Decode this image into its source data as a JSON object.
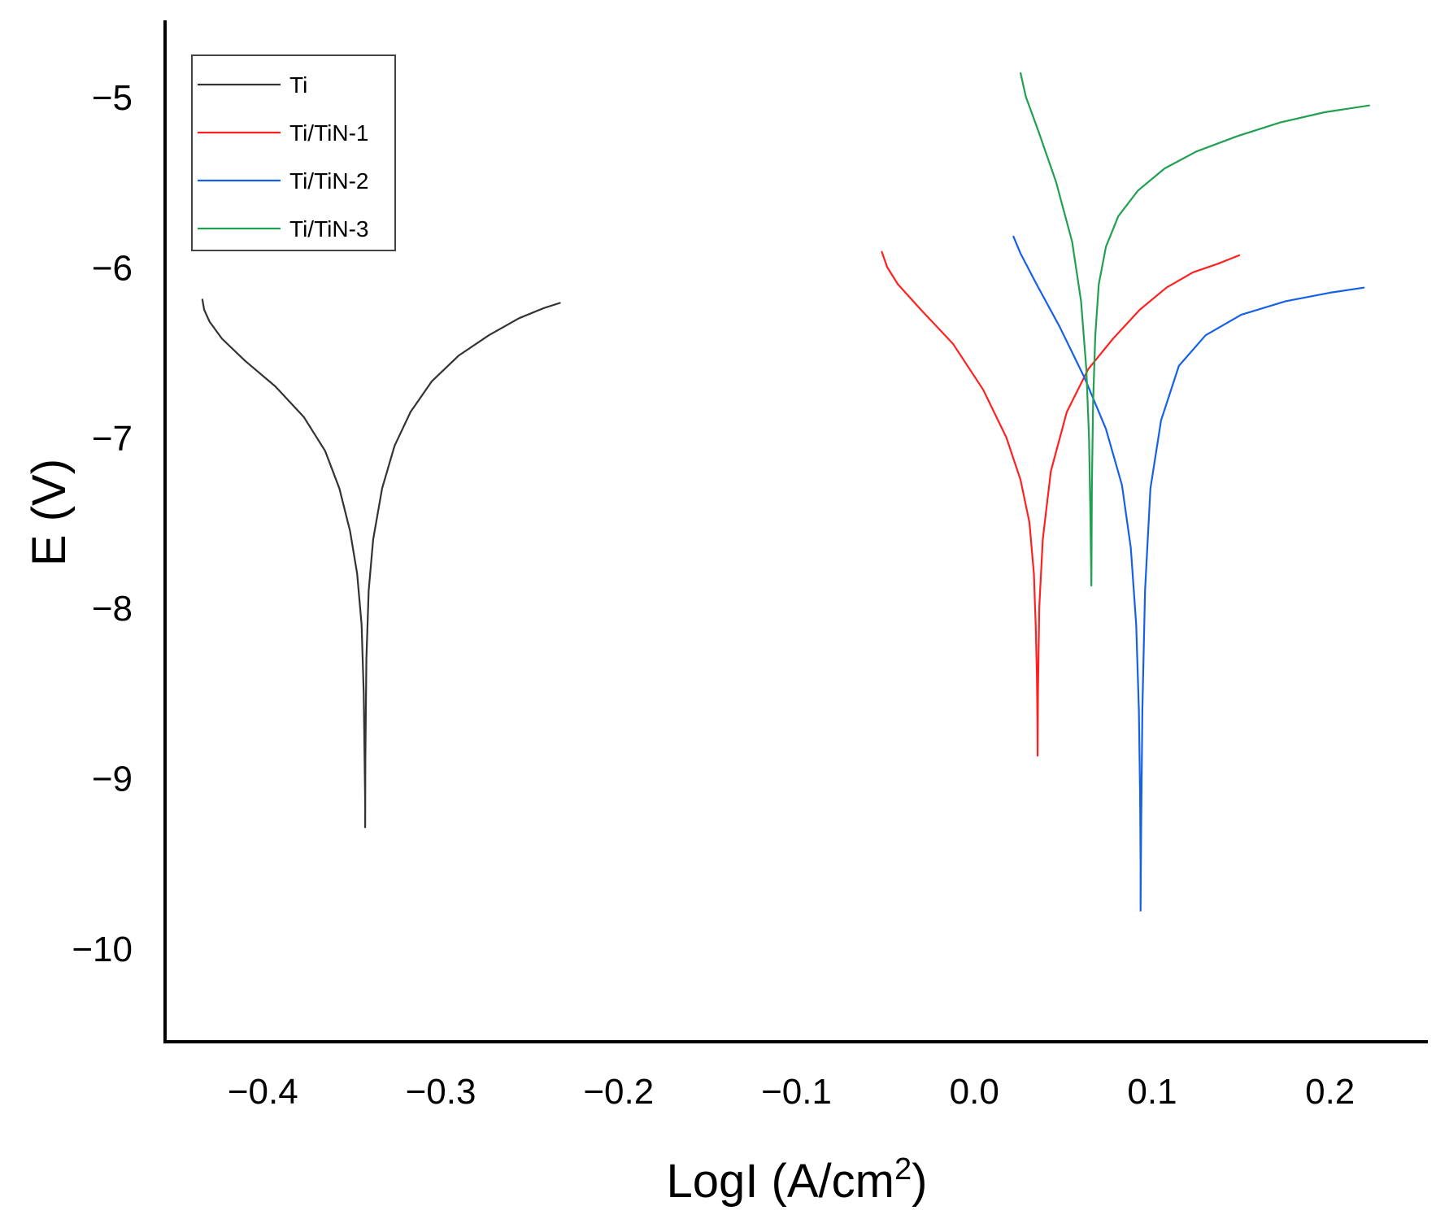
{
  "chart_data": {
    "type": "line",
    "title": "",
    "xlabel": "LogI (A/cm",
    "xlabel_sup": "2",
    "xlabel_close": ")",
    "ylabel": "E (V)",
    "xlim": [
      -0.455,
      0.255
    ],
    "ylim": [
      -10.55,
      -4.55
    ],
    "xticks": [
      -0.4,
      -0.3,
      -0.2,
      -0.1,
      0.0,
      0.1,
      0.2
    ],
    "xtick_labels": [
      "−0.4",
      "−0.3",
      "−0.2",
      "−0.1",
      "0.0",
      "0.1",
      "0.2"
    ],
    "yticks": [
      -5,
      -6,
      -7,
      -8,
      -9,
      -10
    ],
    "ytick_labels": [
      "−5",
      "−6",
      "−7",
      "−8",
      "−9",
      "−10"
    ],
    "legend_position": "top-left",
    "series": [
      {
        "name": "Ti",
        "color": "#333333",
        "x": [
          -0.434,
          -0.433,
          -0.43,
          -0.423,
          -0.41,
          -0.393,
          -0.377,
          -0.365,
          -0.357,
          -0.351,
          -0.347,
          -0.3445,
          -0.3433,
          -0.3428,
          -0.3425,
          -0.3425,
          -0.3424,
          -0.3418,
          -0.3405,
          -0.338,
          -0.333,
          -0.326,
          -0.317,
          -0.305,
          -0.29,
          -0.273,
          -0.256,
          -0.242,
          -0.233
        ],
        "y": [
          -6.19,
          -6.25,
          -6.32,
          -6.42,
          -6.55,
          -6.7,
          -6.88,
          -7.08,
          -7.3,
          -7.55,
          -7.8,
          -8.1,
          -8.5,
          -8.9,
          -9.15,
          -9.29,
          -8.9,
          -8.3,
          -7.9,
          -7.6,
          -7.3,
          -7.05,
          -6.85,
          -6.67,
          -6.52,
          -6.4,
          -6.3,
          -6.24,
          -6.21
        ]
      },
      {
        "name": "Ti/TiN-1",
        "color": "#ff2020",
        "x": [
          -0.052,
          -0.049,
          -0.043,
          -0.03,
          -0.012,
          0.005,
          0.018,
          0.026,
          0.031,
          0.0335,
          0.0345,
          0.0352,
          0.0355,
          0.0356,
          0.0358,
          0.0365,
          0.0385,
          0.043,
          0.052,
          0.064,
          0.078,
          0.093,
          0.108,
          0.123,
          0.137,
          0.149
        ],
        "y": [
          -5.91,
          -6.0,
          -6.1,
          -6.25,
          -6.45,
          -6.72,
          -7.0,
          -7.25,
          -7.5,
          -7.8,
          -8.1,
          -8.4,
          -8.7,
          -8.87,
          -8.5,
          -8.0,
          -7.6,
          -7.2,
          -6.85,
          -6.6,
          -6.42,
          -6.25,
          -6.12,
          -6.03,
          -5.98,
          -5.93
        ]
      },
      {
        "name": "Ti/TiN-2",
        "color": "#1560e8",
        "x": [
          0.022,
          0.026,
          0.035,
          0.048,
          0.062,
          0.074,
          0.083,
          0.088,
          0.091,
          0.0925,
          0.0932,
          0.0935,
          0.0935,
          0.0938,
          0.0945,
          0.096,
          0.099,
          0.105,
          0.115,
          0.13,
          0.15,
          0.175,
          0.2,
          0.219
        ],
        "y": [
          -5.82,
          -5.92,
          -6.1,
          -6.35,
          -6.65,
          -6.95,
          -7.28,
          -7.65,
          -8.1,
          -8.6,
          -9.1,
          -9.5,
          -9.78,
          -9.3,
          -8.6,
          -7.9,
          -7.3,
          -6.9,
          -6.58,
          -6.4,
          -6.28,
          -6.2,
          -6.15,
          -6.12
        ]
      },
      {
        "name": "Ti/TiN-3",
        "color": "#20a050",
        "x": [
          0.026,
          0.029,
          0.036,
          0.046,
          0.055,
          0.06,
          0.063,
          0.0645,
          0.0652,
          0.0656,
          0.0658,
          0.0661,
          0.0668,
          0.068,
          0.07,
          0.074,
          0.081,
          0.092,
          0.107,
          0.125,
          0.148,
          0.172,
          0.197,
          0.222
        ],
        "y": [
          -4.86,
          -5.0,
          -5.2,
          -5.5,
          -5.85,
          -6.2,
          -6.6,
          -7.0,
          -7.4,
          -7.7,
          -7.87,
          -7.3,
          -6.8,
          -6.4,
          -6.1,
          -5.88,
          -5.7,
          -5.55,
          -5.42,
          -5.32,
          -5.23,
          -5.15,
          -5.09,
          -5.05
        ]
      }
    ]
  }
}
